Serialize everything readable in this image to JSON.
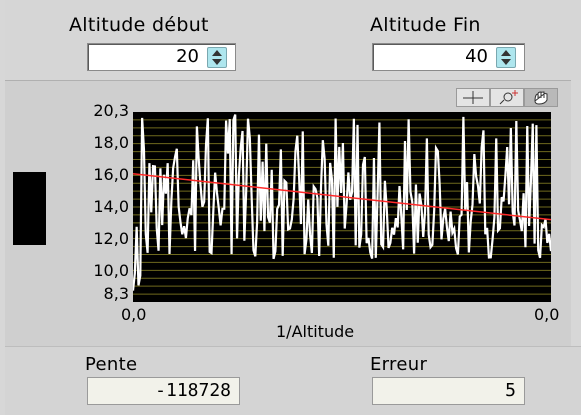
{
  "controls": {
    "altitude_debut": {
      "label": "Altitude début",
      "value": "20"
    },
    "altitude_fin": {
      "label": "Altitude Fin",
      "value": "40"
    }
  },
  "graph_toolbar": {
    "tools": [
      {
        "icon": "crosshair-cursor-icon"
      },
      {
        "icon": "zoom-icon"
      },
      {
        "icon": "pan-hand-icon",
        "selected": true
      }
    ]
  },
  "chart_data": {
    "type": "line",
    "xlabel": "1/Altitude",
    "ylabel": "",
    "x_ticks": [
      "0,0",
      "0,0"
    ],
    "y_ticks": [
      "20,3",
      "18,0",
      "16,0",
      "14,0",
      "12,0",
      "10,0",
      "8,3"
    ],
    "ylim": [
      8.3,
      20.3
    ],
    "background": "#000000",
    "grid": true,
    "grid_color": "#6f6a1e",
    "series": [
      {
        "kind": "noisy-data",
        "color": "#ffffff",
        "start_center": 15.5,
        "end_center": 14.0,
        "spread_low": 11.0,
        "spread_high": 20.3,
        "points": 230
      },
      {
        "kind": "fit",
        "color": "#ff2a2a",
        "y_start": 16.4,
        "y_end": 13.5
      }
    ]
  },
  "outputs": {
    "pente": {
      "label": "Pente",
      "value": "-118728"
    },
    "erreur": {
      "label": "Erreur",
      "value": "5"
    }
  }
}
